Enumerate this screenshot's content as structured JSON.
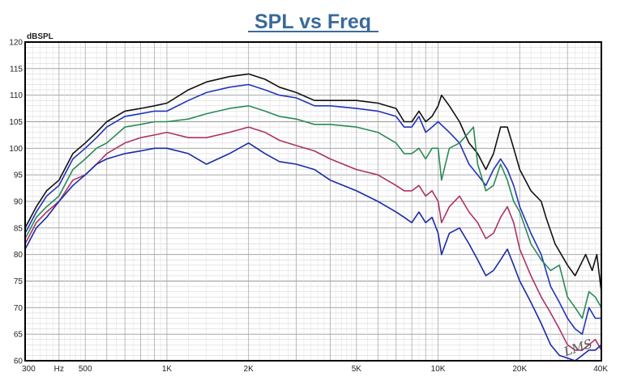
{
  "chart_data": {
    "type": "line",
    "title": "SPL vs Freq",
    "ylabel_unit": "dBSPL",
    "x_scale": "log",
    "xlim": [
      300,
      40000
    ],
    "ylim": [
      60,
      120
    ],
    "x_tick_labels": [
      {
        "value": 300,
        "label": "300"
      },
      {
        "value": 400,
        "label": "Hz"
      },
      {
        "value": 500,
        "label": "500"
      },
      {
        "value": 1000,
        "label": "1K"
      },
      {
        "value": 2000,
        "label": "2K"
      },
      {
        "value": 5000,
        "label": "5K"
      },
      {
        "value": 10000,
        "label": "10K"
      },
      {
        "value": 20000,
        "label": "20K"
      },
      {
        "value": 40000,
        "label": "40K"
      }
    ],
    "y_ticks": [
      60,
      65,
      70,
      75,
      80,
      85,
      90,
      95,
      100,
      105,
      110,
      115,
      120
    ],
    "grid": true,
    "series": [
      {
        "color": "#111111",
        "points": [
          [
            300,
            85
          ],
          [
            330,
            89
          ],
          [
            360,
            92
          ],
          [
            400,
            94
          ],
          [
            450,
            99
          ],
          [
            500,
            101
          ],
          [
            550,
            103
          ],
          [
            600,
            105
          ],
          [
            700,
            107
          ],
          [
            800,
            107.5
          ],
          [
            900,
            108
          ],
          [
            1000,
            108.5
          ],
          [
            1200,
            111
          ],
          [
            1400,
            112.5
          ],
          [
            1700,
            113.5
          ],
          [
            2000,
            114
          ],
          [
            2300,
            113
          ],
          [
            2600,
            111.5
          ],
          [
            3000,
            110.5
          ],
          [
            3500,
            109
          ],
          [
            4000,
            109
          ],
          [
            5000,
            109
          ],
          [
            6000,
            108.5
          ],
          [
            7000,
            107.5
          ],
          [
            7500,
            105
          ],
          [
            8000,
            105
          ],
          [
            8500,
            107
          ],
          [
            9000,
            105
          ],
          [
            9500,
            106
          ],
          [
            10000,
            108
          ],
          [
            10300,
            110
          ],
          [
            11000,
            108
          ],
          [
            12000,
            105
          ],
          [
            13000,
            101
          ],
          [
            14000,
            99
          ],
          [
            15000,
            96
          ],
          [
            16000,
            99
          ],
          [
            17000,
            104
          ],
          [
            18000,
            104
          ],
          [
            19000,
            100
          ],
          [
            20000,
            96
          ],
          [
            22000,
            92
          ],
          [
            24000,
            90
          ],
          [
            25000,
            87
          ],
          [
            27000,
            82
          ],
          [
            30000,
            78
          ],
          [
            32000,
            76
          ],
          [
            35000,
            80
          ],
          [
            37000,
            77
          ],
          [
            38500,
            80
          ],
          [
            40000,
            73
          ]
        ]
      },
      {
        "color": "#2233bb",
        "points": [
          [
            300,
            84
          ],
          [
            330,
            88
          ],
          [
            360,
            91
          ],
          [
            400,
            93
          ],
          [
            450,
            98
          ],
          [
            500,
            100
          ],
          [
            550,
            102
          ],
          [
            600,
            104
          ],
          [
            700,
            106
          ],
          [
            800,
            106.5
          ],
          [
            900,
            107
          ],
          [
            1000,
            107
          ],
          [
            1200,
            109
          ],
          [
            1400,
            110.5
          ],
          [
            1700,
            111.5
          ],
          [
            2000,
            112
          ],
          [
            2300,
            111
          ],
          [
            2600,
            110
          ],
          [
            3000,
            109.5
          ],
          [
            3500,
            108
          ],
          [
            4000,
            108
          ],
          [
            5000,
            107.5
          ],
          [
            6000,
            107
          ],
          [
            7000,
            106
          ],
          [
            7500,
            104
          ],
          [
            8000,
            104
          ],
          [
            8500,
            106
          ],
          [
            9000,
            103
          ],
          [
            9500,
            104
          ],
          [
            10000,
            105
          ],
          [
            11000,
            103
          ],
          [
            12000,
            101
          ],
          [
            13000,
            97
          ],
          [
            14000,
            95
          ],
          [
            15000,
            93
          ],
          [
            16000,
            96
          ],
          [
            17000,
            98
          ],
          [
            18000,
            96
          ],
          [
            19000,
            93
          ],
          [
            20000,
            89
          ],
          [
            22000,
            84
          ],
          [
            24000,
            80
          ],
          [
            26000,
            74
          ],
          [
            28000,
            71
          ],
          [
            30000,
            68
          ],
          [
            32000,
            66
          ],
          [
            34000,
            65
          ],
          [
            36000,
            70
          ],
          [
            38000,
            68
          ],
          [
            40000,
            68
          ]
        ]
      },
      {
        "color": "#2a8a55",
        "points": [
          [
            300,
            83
          ],
          [
            330,
            87
          ],
          [
            360,
            89
          ],
          [
            400,
            91
          ],
          [
            450,
            96
          ],
          [
            500,
            98
          ],
          [
            550,
            100
          ],
          [
            600,
            101
          ],
          [
            700,
            104
          ],
          [
            800,
            104.5
          ],
          [
            900,
            105
          ],
          [
            1000,
            105
          ],
          [
            1200,
            105.5
          ],
          [
            1400,
            106.5
          ],
          [
            1700,
            107.5
          ],
          [
            2000,
            108
          ],
          [
            2300,
            107
          ],
          [
            2600,
            106
          ],
          [
            3000,
            105.5
          ],
          [
            3500,
            104.5
          ],
          [
            4000,
            104.5
          ],
          [
            5000,
            104
          ],
          [
            6000,
            103
          ],
          [
            7000,
            101
          ],
          [
            7500,
            99
          ],
          [
            8000,
            99
          ],
          [
            8500,
            100
          ],
          [
            9000,
            98
          ],
          [
            9500,
            100
          ],
          [
            10000,
            100
          ],
          [
            10300,
            94
          ],
          [
            11000,
            100
          ],
          [
            12000,
            101
          ],
          [
            13000,
            103
          ],
          [
            13500,
            104
          ],
          [
            14000,
            97
          ],
          [
            15000,
            92
          ],
          [
            16000,
            93
          ],
          [
            17000,
            97
          ],
          [
            18000,
            94
          ],
          [
            19000,
            90
          ],
          [
            20000,
            88
          ],
          [
            22000,
            82
          ],
          [
            24000,
            79
          ],
          [
            26000,
            77
          ],
          [
            28000,
            78
          ],
          [
            30000,
            72
          ],
          [
            32000,
            70
          ],
          [
            34000,
            68
          ],
          [
            36000,
            73
          ],
          [
            38000,
            72
          ],
          [
            40000,
            70
          ]
        ]
      },
      {
        "color": "#aa3366",
        "points": [
          [
            300,
            82
          ],
          [
            330,
            86
          ],
          [
            360,
            88
          ],
          [
            400,
            90
          ],
          [
            450,
            94
          ],
          [
            500,
            95
          ],
          [
            550,
            97
          ],
          [
            600,
            99
          ],
          [
            700,
            101
          ],
          [
            800,
            102
          ],
          [
            900,
            102.5
          ],
          [
            1000,
            103
          ],
          [
            1200,
            102
          ],
          [
            1400,
            102
          ],
          [
            1700,
            103
          ],
          [
            2000,
            104
          ],
          [
            2300,
            103
          ],
          [
            2600,
            101.5
          ],
          [
            3000,
            100.5
          ],
          [
            3500,
            99.5
          ],
          [
            4000,
            98
          ],
          [
            5000,
            96
          ],
          [
            6000,
            95
          ],
          [
            7000,
            93
          ],
          [
            7500,
            92
          ],
          [
            8000,
            92
          ],
          [
            8500,
            93
          ],
          [
            9000,
            91
          ],
          [
            9500,
            92
          ],
          [
            10000,
            90
          ],
          [
            10300,
            86
          ],
          [
            11000,
            89
          ],
          [
            12000,
            91
          ],
          [
            13000,
            88
          ],
          [
            14000,
            86
          ],
          [
            15000,
            83
          ],
          [
            16000,
            84
          ],
          [
            17000,
            87
          ],
          [
            18000,
            89
          ],
          [
            19000,
            86
          ],
          [
            20000,
            81
          ],
          [
            22000,
            76
          ],
          [
            24000,
            72
          ],
          [
            26000,
            69
          ],
          [
            28000,
            66
          ],
          [
            30000,
            63
          ],
          [
            32000,
            62
          ],
          [
            34000,
            62
          ],
          [
            36000,
            63
          ],
          [
            38000,
            64
          ],
          [
            40000,
            62
          ]
        ]
      },
      {
        "color": "#1a2aa8",
        "points": [
          [
            300,
            81
          ],
          [
            330,
            85
          ],
          [
            360,
            87
          ],
          [
            400,
            90
          ],
          [
            450,
            93
          ],
          [
            500,
            95
          ],
          [
            550,
            97
          ],
          [
            600,
            98
          ],
          [
            700,
            99
          ],
          [
            800,
            99.5
          ],
          [
            900,
            100
          ],
          [
            1000,
            100
          ],
          [
            1200,
            99
          ],
          [
            1400,
            97
          ],
          [
            1700,
            99
          ],
          [
            2000,
            101
          ],
          [
            2300,
            99
          ],
          [
            2600,
            97.5
          ],
          [
            3000,
            97
          ],
          [
            3500,
            96
          ],
          [
            4000,
            94
          ],
          [
            5000,
            92
          ],
          [
            6000,
            90
          ],
          [
            7000,
            88
          ],
          [
            7500,
            87
          ],
          [
            8000,
            86
          ],
          [
            8500,
            88
          ],
          [
            9000,
            86
          ],
          [
            9500,
            87
          ],
          [
            10000,
            84
          ],
          [
            10300,
            80
          ],
          [
            11000,
            84
          ],
          [
            12000,
            85
          ],
          [
            13000,
            82
          ],
          [
            14000,
            79
          ],
          [
            15000,
            76
          ],
          [
            16000,
            77
          ],
          [
            17000,
            79
          ],
          [
            18000,
            81
          ],
          [
            19000,
            78
          ],
          [
            20000,
            75
          ],
          [
            22000,
            71
          ],
          [
            24000,
            67
          ],
          [
            26000,
            63
          ],
          [
            28000,
            61
          ],
          [
            30000,
            60.5
          ],
          [
            32000,
            60
          ],
          [
            34000,
            61
          ],
          [
            36000,
            62
          ],
          [
            38000,
            62
          ],
          [
            40000,
            63
          ]
        ]
      }
    ],
    "logo_text": "LMS"
  }
}
